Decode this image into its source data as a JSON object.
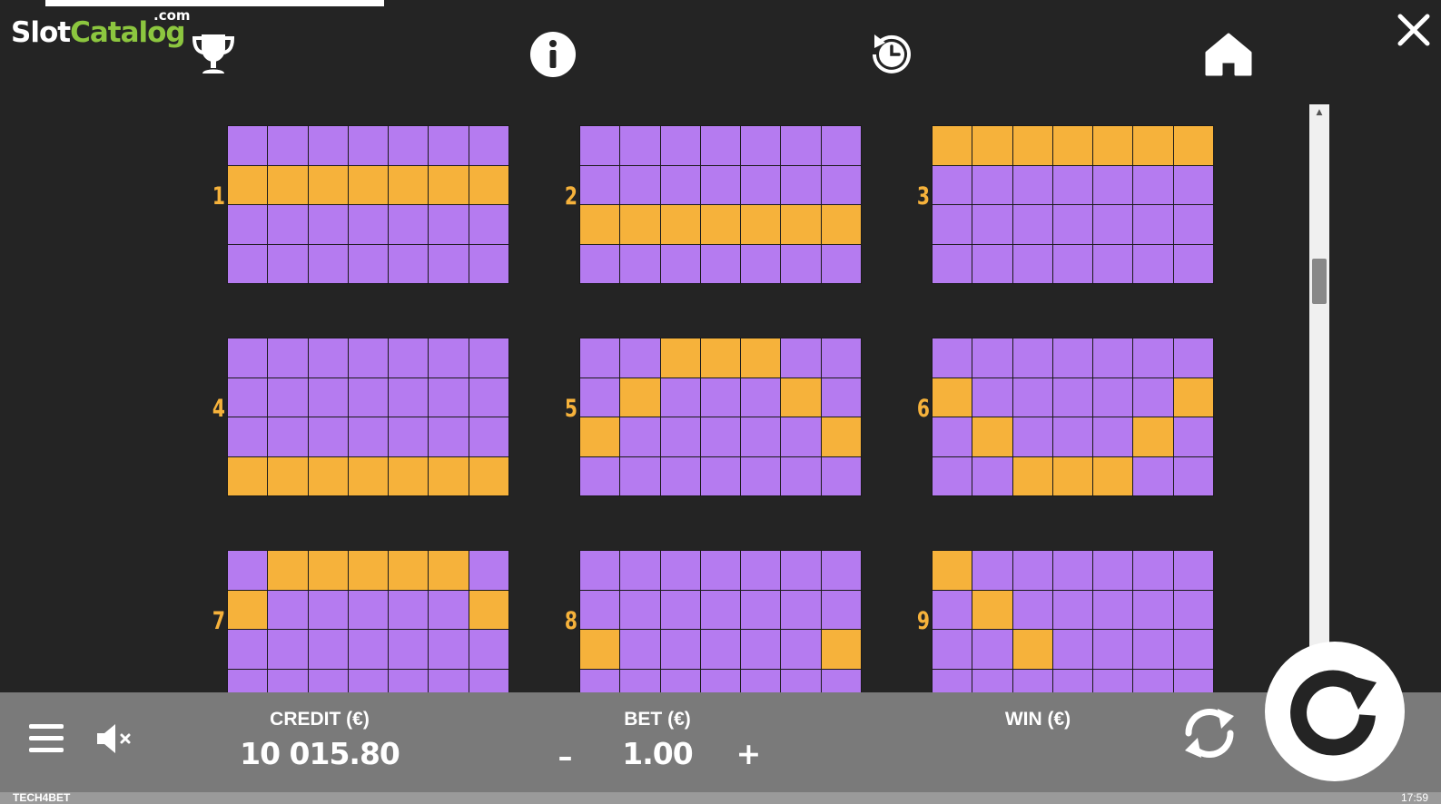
{
  "logo": {
    "slot": "Slot",
    "catalog": "Catalog",
    "com": ".com"
  },
  "top_icons": [
    "trophy-icon",
    "info-icon",
    "history-icon",
    "home-icon",
    "close-icon"
  ],
  "paylines": [
    {
      "label": "1",
      "rows": [
        "0000000",
        "1111111",
        "0000000",
        "0000000"
      ]
    },
    {
      "label": "2",
      "rows": [
        "0000000",
        "0000000",
        "1111111",
        "0000000"
      ]
    },
    {
      "label": "3",
      "rows": [
        "1111111",
        "0000000",
        "0000000",
        "0000000"
      ]
    },
    {
      "label": "4",
      "rows": [
        "0000000",
        "0000000",
        "0000000",
        "1111111"
      ]
    },
    {
      "label": "5",
      "rows": [
        "0011100",
        "0100010",
        "1000001",
        "0000000"
      ]
    },
    {
      "label": "6",
      "rows": [
        "0000000",
        "1000001",
        "0100010",
        "0011100"
      ]
    },
    {
      "label": "7",
      "rows": [
        "0111110",
        "1000001",
        "0000000",
        "0000000"
      ]
    },
    {
      "label": "8",
      "rows": [
        "0000000",
        "0000000",
        "1000001",
        "0000000"
      ]
    },
    {
      "label": "9",
      "rows": [
        "1000000",
        "0100000",
        "0010000",
        "0000000"
      ]
    }
  ],
  "colors": {
    "cell": "#b57bf0",
    "active_cell": "#f6b23b",
    "background": "#242424",
    "bar": "#7a7a7a"
  },
  "bottom": {
    "credit_label": "CREDIT (€)",
    "credit_value": "10 015.80",
    "bet_label": "BET (€)",
    "bet_value": "1.00",
    "bet_minus": "–",
    "bet_plus": "+",
    "win_label": "WIN (€)"
  },
  "footer": {
    "brand": "TECH4BET",
    "clock": "17:59"
  }
}
